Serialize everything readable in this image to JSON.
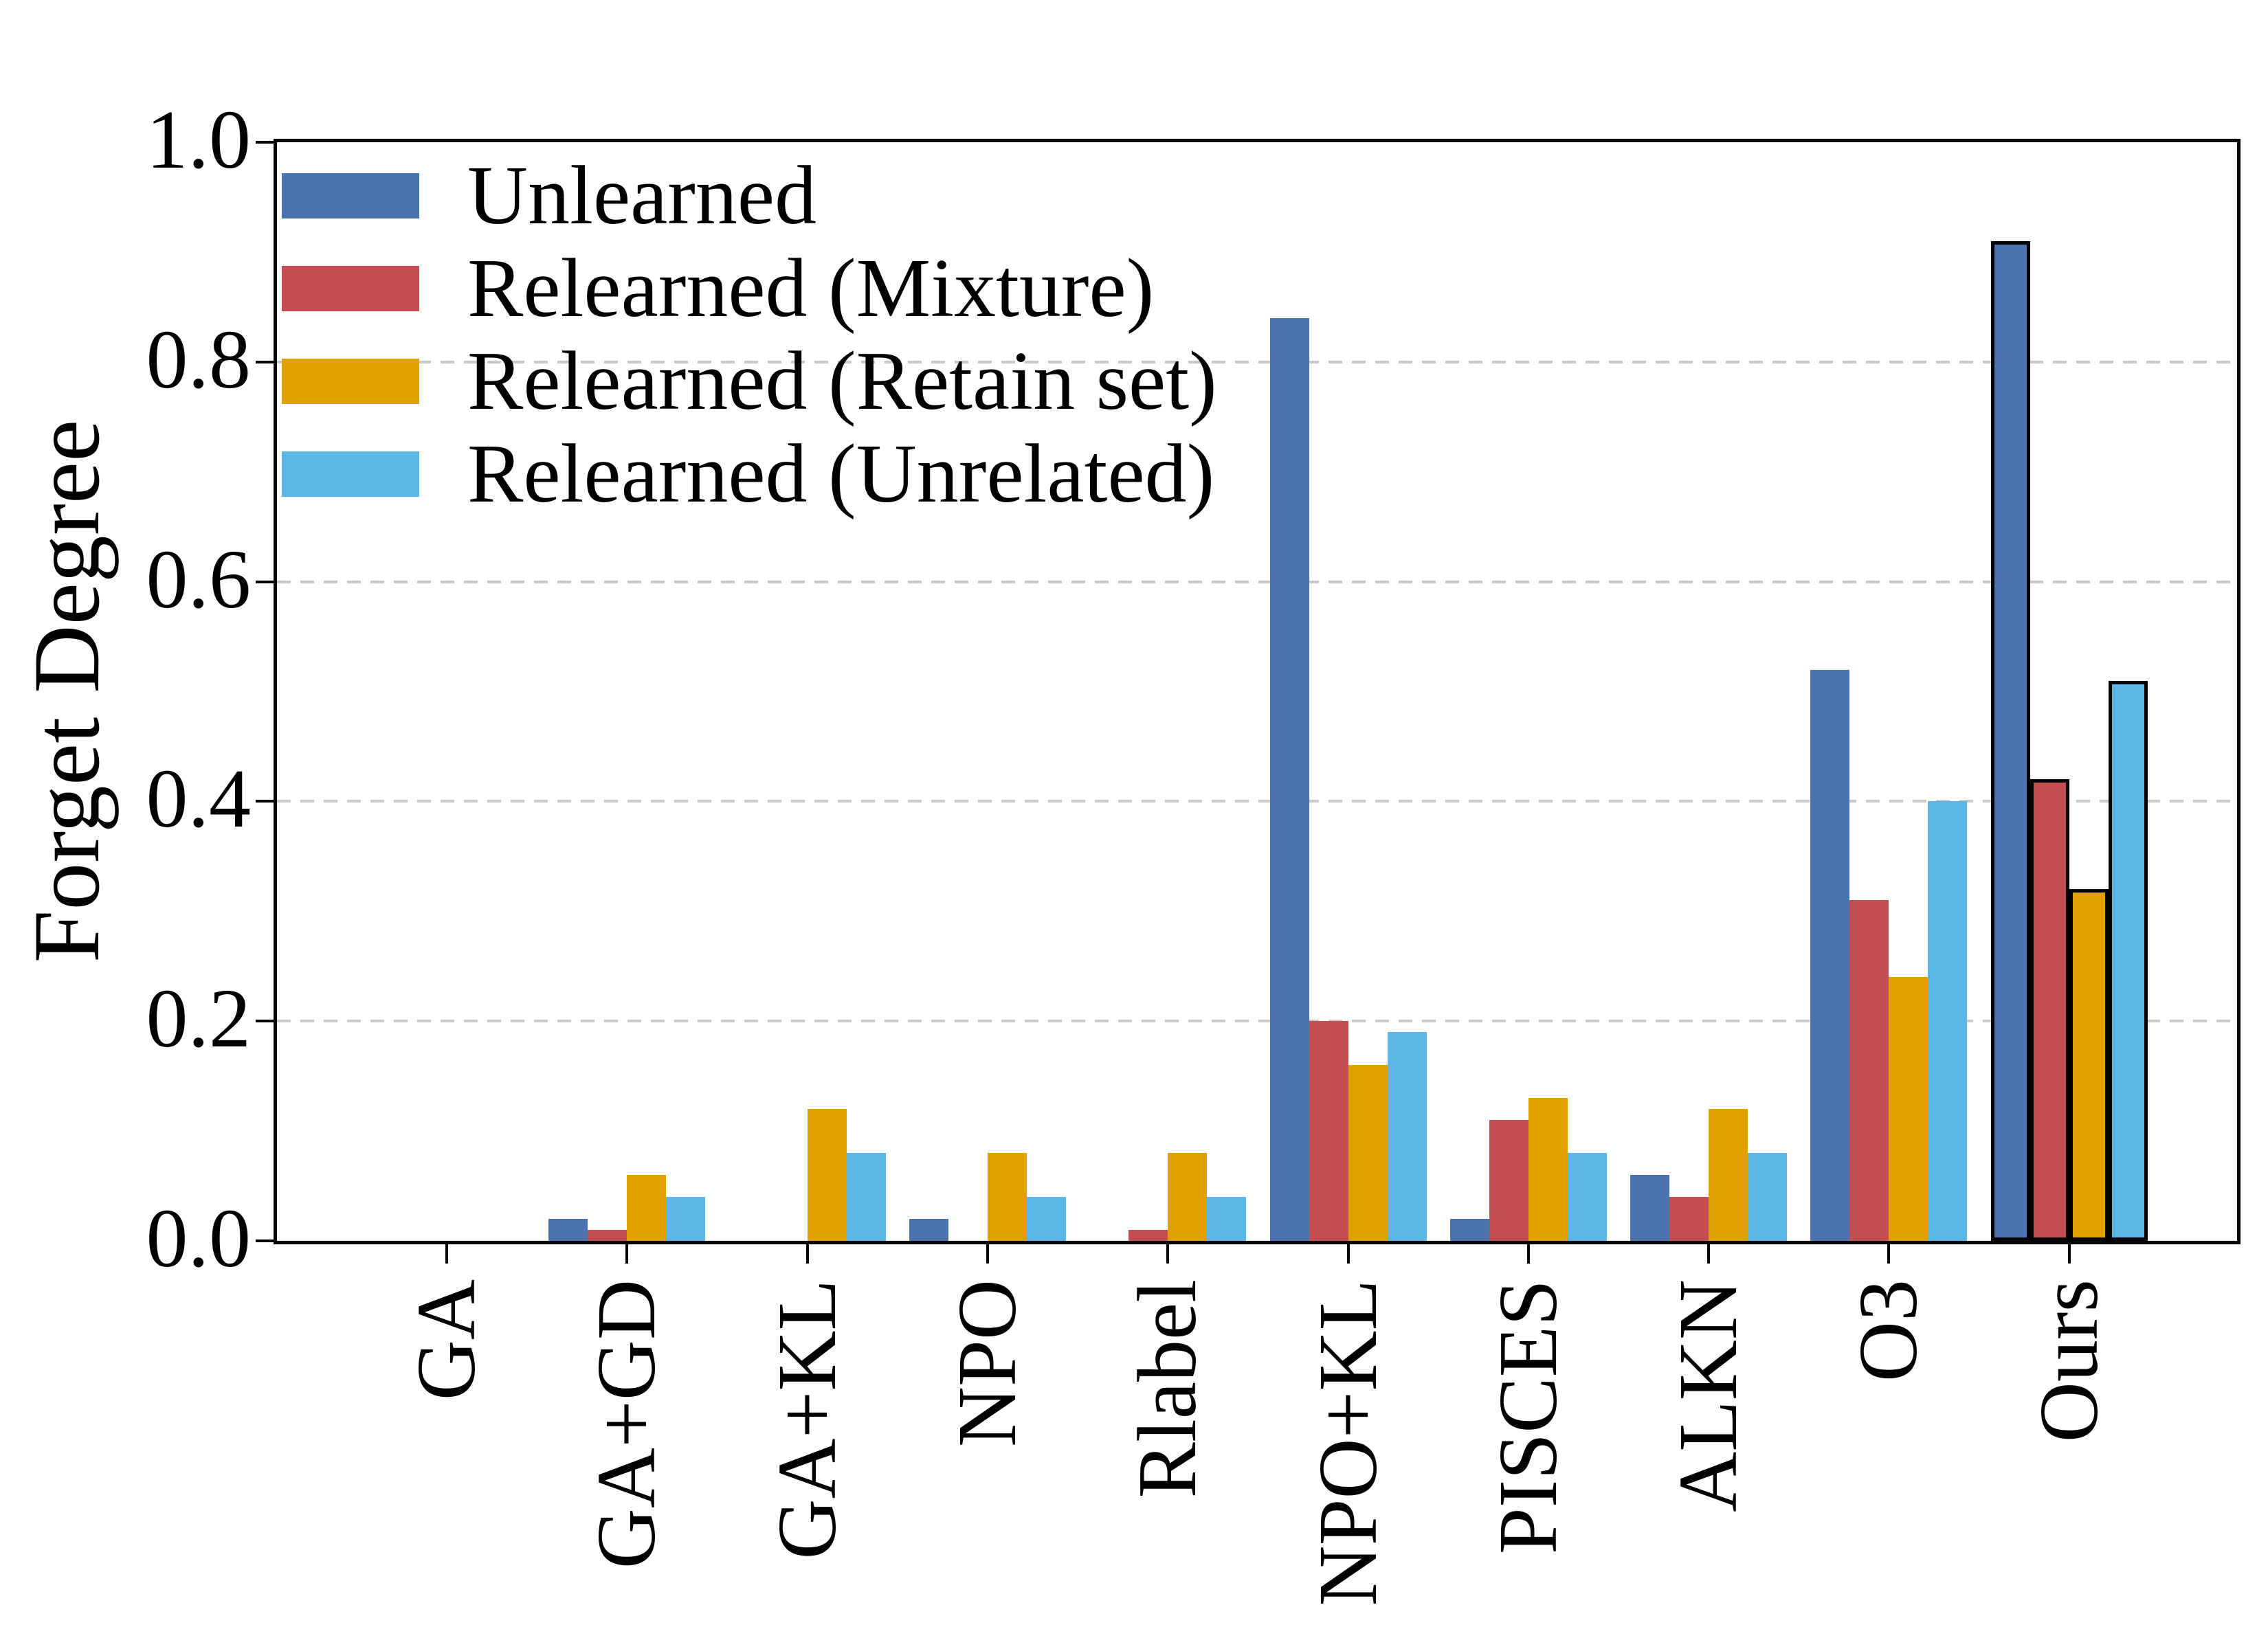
{
  "chart_data": {
    "type": "bar",
    "title": "",
    "xlabel": "",
    "ylabel": "Forget Degree",
    "ylim": [
      0.0,
      1.0
    ],
    "yticks": [
      0.0,
      0.2,
      0.4,
      0.6,
      0.8,
      1.0
    ],
    "gridlines": [
      0.2,
      0.4,
      0.6,
      0.8
    ],
    "grid_style": "dashed",
    "grid_on": true,
    "legend_position": "upper left",
    "legend_frame": false,
    "categories": [
      "GA",
      "GA+GD",
      "GA+KL",
      "NPO",
      "Rlabel",
      "NPO+KL",
      "PISCES",
      "ALKN",
      "O3",
      "Ours"
    ],
    "series": [
      {
        "name": "Unlearned",
        "color": "#4C72B0",
        "values": [
          0.0,
          0.02,
          0.0,
          0.02,
          0.0,
          0.84,
          0.02,
          0.06,
          0.52,
          0.91
        ]
      },
      {
        "name": "Relearned (Mixture)",
        "color": "#C44E52",
        "values": [
          0.0,
          0.01,
          0.0,
          0.0,
          0.01,
          0.2,
          0.11,
          0.04,
          0.31,
          0.42
        ]
      },
      {
        "name": "Relearned (Retain set)",
        "color": "#E0A000",
        "values": [
          0.0,
          0.06,
          0.12,
          0.08,
          0.08,
          0.16,
          0.13,
          0.12,
          0.24,
          0.32
        ]
      },
      {
        "name": "Relearned (Unrelated)",
        "color": "#5AB6E7",
        "values": [
          0.0,
          0.04,
          0.08,
          0.04,
          0.04,
          0.19,
          0.08,
          0.08,
          0.4,
          0.51
        ]
      }
    ],
    "highlight": {
      "category": "Ours",
      "edge_color": "#000000",
      "edge_width": 5
    },
    "colors": {
      "grid": "#c9c9c9",
      "axis": "#000000",
      "background": "#ffffff",
      "text": "#000000"
    }
  }
}
